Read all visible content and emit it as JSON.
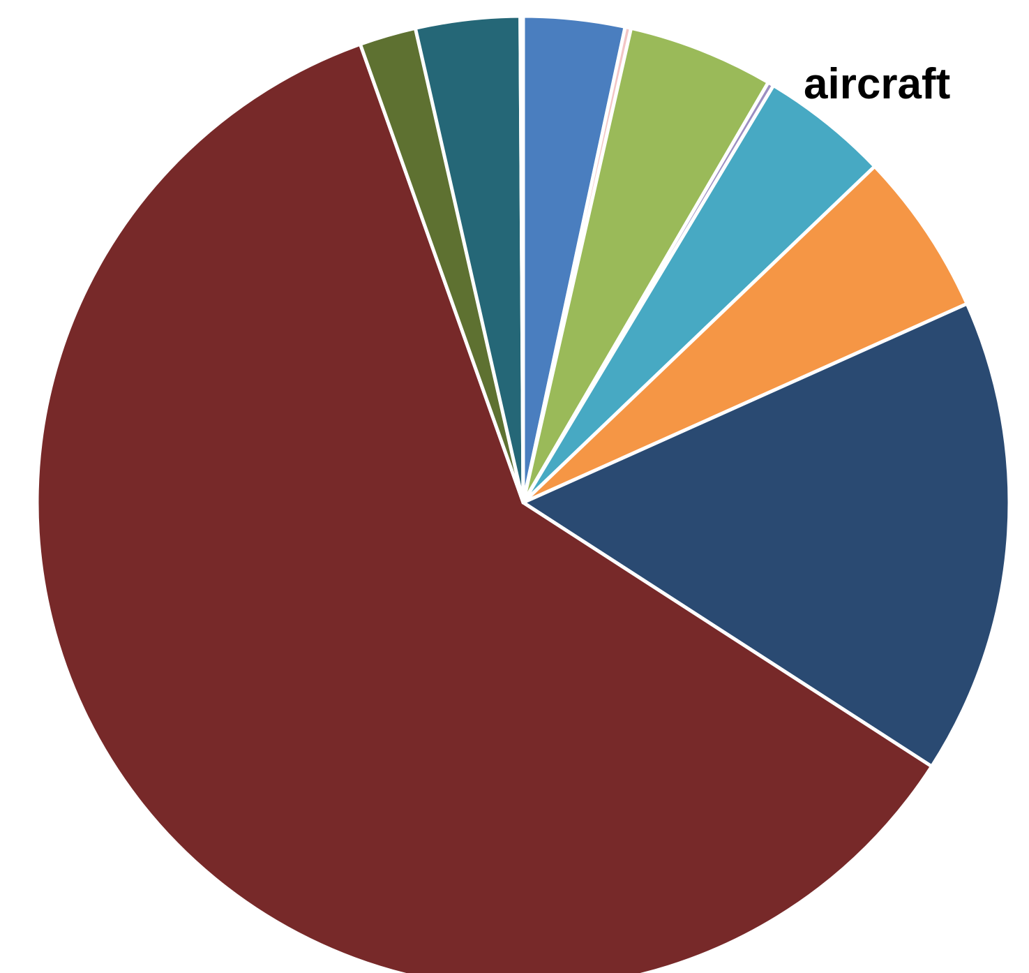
{
  "chart_data": {
    "type": "pie",
    "title": "",
    "start_angle_deg": 0,
    "direction": "clockwise",
    "labels": [
      "",
      "",
      "",
      "",
      "",
      "",
      "",
      "aircraft",
      "",
      "",
      ""
    ],
    "values": [
      3.4,
      0.2,
      4.9,
      0.2,
      4.3,
      5.5,
      16.0,
      61.1,
      1.9,
      3.5,
      0.1
    ],
    "colors": [
      "#4a7ebf",
      "#f3c5c5",
      "#9aba59",
      "#9b8ec1",
      "#47a9c3",
      "#f59645",
      "#2a4a72",
      "#772929",
      "#5e7131",
      "#256777",
      "#e5e5e5"
    ]
  }
}
